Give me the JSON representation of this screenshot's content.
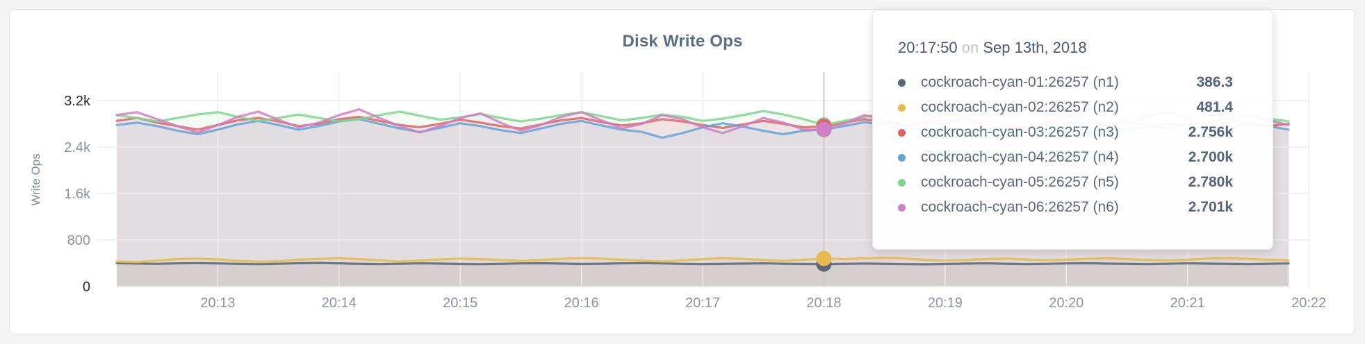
{
  "panel": {
    "title": "Disk Write Ops"
  },
  "tooltip": {
    "time": "20:17:50",
    "conjunction": "on",
    "date": "Sep 13th, 2018",
    "rows": [
      {
        "name": "cockroach-cyan-01:26257 (n1)",
        "value": "386.3",
        "color": "#5b6577"
      },
      {
        "name": "cockroach-cyan-02:26257 (n2)",
        "value": "481.4",
        "color": "#e6ba4c"
      },
      {
        "name": "cockroach-cyan-03:26257 (n3)",
        "value": "2.756k",
        "color": "#df6364"
      },
      {
        "name": "cockroach-cyan-04:26257 (n4)",
        "value": "2.700k",
        "color": "#63a3d7"
      },
      {
        "name": "cockroach-cyan-05:26257 (n5)",
        "value": "2.780k",
        "color": "#79d78a"
      },
      {
        "name": "cockroach-cyan-06:26257 (n6)",
        "value": "2.701k",
        "color": "#cf7fc4"
      }
    ]
  },
  "chart_data": {
    "type": "line",
    "title": "Disk Write Ops",
    "ylabel": "Write Ops",
    "ylim": [
      0,
      3200
    ],
    "grid": true,
    "x_start_time": "20:12:10",
    "x_step_seconds": 10,
    "hover": {
      "time": "20:17:50",
      "index": 35
    },
    "y_ticks": [
      {
        "value": 0,
        "label": "0",
        "emphasis": true
      },
      {
        "value": 800,
        "label": "800",
        "emphasis": false
      },
      {
        "value": 1600,
        "label": "1.6k",
        "emphasis": false
      },
      {
        "value": 2400,
        "label": "2.4k",
        "emphasis": false
      },
      {
        "value": 3200,
        "label": "3.2k",
        "emphasis": true
      }
    ],
    "x_ticks": [
      {
        "index": 5,
        "label": "20:13"
      },
      {
        "index": 11,
        "label": "20:14"
      },
      {
        "index": 17,
        "label": "20:15"
      },
      {
        "index": 23,
        "label": "20:16"
      },
      {
        "index": 29,
        "label": "20:17"
      },
      {
        "index": 35,
        "label": "20:18"
      },
      {
        "index": 41,
        "label": "20:19"
      },
      {
        "index": 47,
        "label": "20:20"
      },
      {
        "index": 53,
        "label": "20:21"
      },
      {
        "index": 59,
        "label": "20:22"
      }
    ],
    "series": [
      {
        "node": "n1",
        "name": "cockroach-cyan-01:26257 (n1)",
        "color": "#5b6577",
        "hover_value": 386.3,
        "values": [
          400,
          395,
          390,
          398,
          402,
          396,
          390,
          385,
          392,
          400,
          405,
          398,
          390,
          386,
          392,
          398,
          394,
          388,
          384,
          390,
          396,
          400,
          394,
          388,
          392,
          398,
          402,
          396,
          390,
          386,
          390,
          394,
          398,
          392,
          388,
          386,
          390,
          394,
          390,
          386,
          382,
          388,
          394,
          398,
          392,
          386,
          390,
          396,
          400,
          394,
          390,
          386,
          392,
          398,
          394,
          390,
          386,
          392,
          396
        ]
      },
      {
        "node": "n2",
        "name": "cockroach-cyan-02:26257 (n2)",
        "color": "#e6ba4c",
        "hover_value": 481.4,
        "values": [
          430,
          420,
          445,
          470,
          480,
          465,
          440,
          425,
          435,
          460,
          475,
          485,
          470,
          450,
          430,
          445,
          465,
          480,
          470,
          455,
          440,
          455,
          475,
          490,
          480,
          460,
          445,
          430,
          450,
          470,
          485,
          475,
          455,
          440,
          460,
          481,
          470,
          485,
          495,
          480,
          460,
          445,
          455,
          470,
          480,
          465,
          450,
          460,
          475,
          485,
          470,
          455,
          445,
          460,
          480,
          490,
          475,
          460,
          450
        ]
      },
      {
        "node": "n3",
        "name": "cockroach-cyan-03:26257 (n3)",
        "color": "#df6364",
        "hover_value": 2756,
        "values": [
          2850,
          2900,
          2820,
          2760,
          2700,
          2780,
          2860,
          2900,
          2840,
          2760,
          2800,
          2880,
          2920,
          2850,
          2780,
          2740,
          2800,
          2870,
          2820,
          2760,
          2720,
          2790,
          2860,
          2900,
          2830,
          2770,
          2810,
          2880,
          2840,
          2780,
          2730,
          2790,
          2850,
          2800,
          2740,
          2756,
          2820,
          2880,
          2830,
          2770,
          2810,
          2870,
          2900,
          2840,
          2780,
          2740,
          2800,
          2950,
          2860,
          2790,
          2830,
          2770,
          2720,
          2780,
          2850,
          2890,
          2820,
          2760,
          2800
        ]
      },
      {
        "node": "n4",
        "name": "cockroach-cyan-04:26257 (n4)",
        "color": "#63a3d7",
        "hover_value": 2700,
        "values": [
          2780,
          2820,
          2760,
          2680,
          2620,
          2700,
          2790,
          2850,
          2780,
          2700,
          2760,
          2840,
          2880,
          2800,
          2720,
          2660,
          2730,
          2810,
          2760,
          2690,
          2640,
          2720,
          2800,
          2850,
          2770,
          2700,
          2660,
          2560,
          2640,
          2740,
          2810,
          2750,
          2680,
          2620,
          2680,
          2700,
          2760,
          2830,
          2780,
          2700,
          2750,
          2830,
          2870,
          2790,
          2710,
          2660,
          2730,
          2800,
          2840,
          2760,
          2700,
          2740,
          2810,
          2760,
          2690,
          2730,
          2800,
          2760,
          2700
        ]
      },
      {
        "node": "n5",
        "name": "cockroach-cyan-05:26257 (n5)",
        "color": "#79d78a",
        "hover_value": 2780,
        "values": [
          2950,
          2900,
          2840,
          2900,
          2960,
          3000,
          2920,
          2850,
          2900,
          2960,
          2900,
          2840,
          2880,
          2950,
          3010,
          2940,
          2870,
          2910,
          2970,
          2900,
          2840,
          2890,
          2950,
          3000,
          2930,
          2860,
          2900,
          2960,
          2920,
          2850,
          2890,
          2950,
          3020,
          2960,
          2880,
          2780,
          2850,
          2920,
          2980,
          3040,
          2960,
          2890,
          2930,
          2990,
          2920,
          2850,
          2890,
          2950,
          2900,
          2840,
          2880,
          2940,
          3000,
          2930,
          2860,
          2900,
          2950,
          2890,
          2840
        ]
      },
      {
        "node": "n6",
        "name": "cockroach-cyan-06:26257 (n6)",
        "color": "#cf7fc4",
        "hover_value": 2701,
        "values": [
          2950,
          3000,
          2880,
          2760,
          2650,
          2780,
          2920,
          3010,
          2870,
          2740,
          2820,
          2950,
          3050,
          2900,
          2760,
          2650,
          2760,
          2900,
          2980,
          2820,
          2680,
          2780,
          2920,
          3000,
          2860,
          2720,
          2800,
          2950,
          2880,
          2740,
          2640,
          2760,
          2900,
          2820,
          2700,
          2701,
          2800,
          2950,
          2870,
          2760,
          2840,
          2960,
          3080,
          2920,
          2780,
          2680,
          2790,
          2930,
          2860,
          2740,
          2800,
          2920,
          3000,
          2880,
          2760,
          2820,
          2940,
          2860,
          2780
        ]
      }
    ]
  }
}
